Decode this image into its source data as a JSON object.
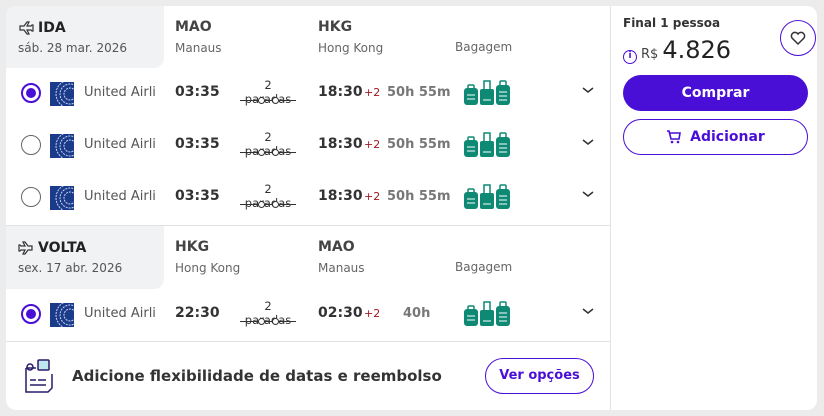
{
  "outbound": {
    "label": "IDA",
    "date": "sáb. 28 mar. 2026",
    "from_code": "MAO",
    "from_city": "Manaus",
    "to_code": "HKG",
    "to_city": "Hong Kong",
    "baggage_label": "Bagagem",
    "options": [
      {
        "selected": true,
        "airline": "United Airlines",
        "dep": "03:35",
        "stops": "2 paradas",
        "arr": "18:30",
        "day_offset": "+2",
        "duration": "50h 55m"
      },
      {
        "selected": false,
        "airline": "United Airlines",
        "dep": "03:35",
        "stops": "2 paradas",
        "arr": "18:30",
        "day_offset": "+2",
        "duration": "50h 55m"
      },
      {
        "selected": false,
        "airline": "United Airlines",
        "dep": "03:35",
        "stops": "2 paradas",
        "arr": "18:30",
        "day_offset": "+2",
        "duration": "50h 55m"
      }
    ]
  },
  "inbound": {
    "label": "VOLTA",
    "date": "sex. 17 abr. 2026",
    "from_code": "HKG",
    "from_city": "Hong Kong",
    "to_code": "MAO",
    "to_city": "Manaus",
    "baggage_label": "Bagagem",
    "options": [
      {
        "selected": true,
        "airline": "United Airlines",
        "dep": "22:30",
        "stops": "2 paradas",
        "arr": "02:30",
        "day_offset": "+2",
        "duration": "40h"
      }
    ]
  },
  "flex": {
    "text": "Adicione flexibilidade de datas e reembolso",
    "button": "Ver opções"
  },
  "price": {
    "label": "Final 1 pessoa",
    "currency": "R$",
    "amount": "4.826",
    "buy": "Comprar",
    "add": "Adicionar"
  },
  "colors": {
    "accent": "#4a0fd6",
    "baggage": "#0e8a74",
    "day_offset": "#a3161f"
  }
}
